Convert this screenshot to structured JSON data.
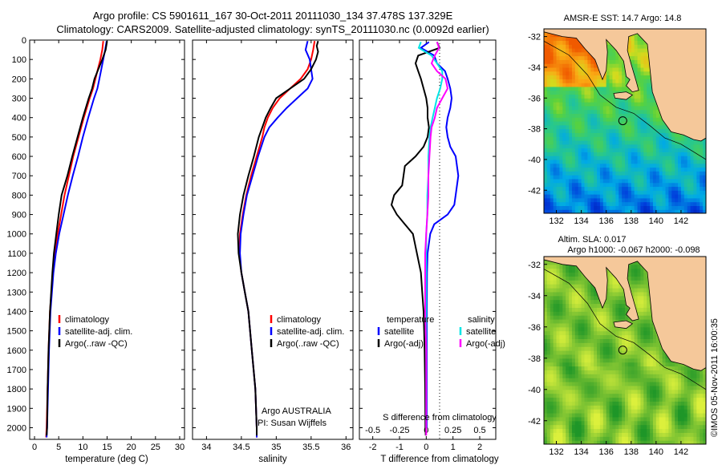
{
  "header": {
    "line1": "Argo profile: CS 5901611_167 30-Oct-2011 20111030_134 37.478S 137.329E",
    "line2": "Climatology: CARS2009. Satellite-adjusted climatology: synTS_20111030.nc (0.0092d earlier)"
  },
  "colors": {
    "climatology": "#ff0000",
    "satellite": "#0000ff",
    "argo": "#000000",
    "sal_satellite": "#00e5e5",
    "sal_argo": "#ff00ff",
    "land": "#f5c89a"
  },
  "chart_data": [
    {
      "id": "temperature",
      "type": "line",
      "xlabel": "temperature (deg C)",
      "ylabel": "",
      "xlim": [
        -1,
        31
      ],
      "ylim": [
        2060,
        0
      ],
      "xticks": [
        0,
        5,
        10,
        15,
        20,
        25,
        30
      ],
      "yticks": [
        0,
        100,
        200,
        300,
        400,
        500,
        600,
        700,
        800,
        900,
        1000,
        1100,
        1200,
        1300,
        1400,
        1500,
        1600,
        1700,
        1800,
        1900,
        2000
      ],
      "legend": {
        "placement": "lower-center",
        "items": [
          "climatology",
          "satellite-adj. clim.",
          "Argo(..raw -QC)"
        ]
      },
      "series": [
        {
          "name": "climatology",
          "color": "#ff0000",
          "y": [
            5,
            50,
            100,
            150,
            200,
            250,
            300,
            400,
            500,
            600,
            700,
            800,
            900,
            1000,
            1100,
            1200,
            1400,
            1600,
            1800,
            2000,
            2050
          ],
          "values": [
            14.2,
            14.0,
            13.6,
            13.1,
            12.6,
            12.1,
            11.4,
            10.2,
            9.1,
            8.0,
            7.1,
            6.2,
            5.5,
            4.8,
            4.2,
            3.8,
            3.2,
            2.9,
            2.7,
            2.5,
            2.4
          ]
        },
        {
          "name": "satellite-adj. clim.",
          "color": "#0000ff",
          "y": [
            5,
            50,
            100,
            150,
            200,
            250,
            300,
            400,
            500,
            600,
            700,
            800,
            900,
            1000,
            1100,
            1200,
            1400,
            1600,
            1800,
            2000,
            2050
          ],
          "values": [
            14.9,
            14.6,
            14.2,
            13.8,
            13.4,
            13.0,
            12.3,
            11.1,
            10.0,
            9.0,
            7.9,
            6.9,
            6.0,
            5.1,
            4.4,
            3.9,
            3.3,
            3.0,
            2.8,
            2.6,
            2.5
          ]
        },
        {
          "name": "Argo(..raw -QC)",
          "color": "#000000",
          "y": [
            5,
            50,
            100,
            150,
            200,
            250,
            300,
            400,
            500,
            600,
            700,
            800,
            900,
            1000,
            1100,
            1200,
            1400,
            1600,
            1800,
            2000,
            2040
          ],
          "values": [
            15.0,
            14.7,
            14.0,
            13.2,
            12.4,
            11.9,
            11.2,
            10.0,
            8.9,
            7.8,
            6.8,
            5.6,
            5.0,
            4.5,
            4.0,
            3.7,
            3.2,
            2.9,
            2.7,
            2.6,
            2.5
          ]
        }
      ]
    },
    {
      "id": "salinity",
      "type": "line",
      "xlabel": "salinity",
      "ylabel": "",
      "xlim": [
        33.8,
        36.1
      ],
      "ylim": [
        2060,
        0
      ],
      "xticks": [
        34,
        34.5,
        35,
        35.5,
        36
      ],
      "legend": {
        "placement": "lower-center",
        "items": [
          "climatology",
          "satellite-adj. clim.",
          "Argo(..raw -QC)"
        ]
      },
      "annotations": [
        "Argo AUSTRALIA",
        "PI: Susan Wijffels"
      ],
      "series": [
        {
          "name": "climatology",
          "color": "#ff0000",
          "y": [
            5,
            50,
            100,
            150,
            200,
            250,
            300,
            350,
            400,
            450,
            500,
            600,
            700,
            800,
            900,
            1000,
            1100,
            1200,
            1300,
            1400,
            1600,
            1800,
            2000,
            2050
          ],
          "values": [
            35.55,
            35.53,
            35.5,
            35.45,
            35.35,
            35.2,
            35.05,
            34.95,
            34.88,
            34.83,
            34.8,
            34.72,
            34.64,
            34.57,
            34.52,
            34.48,
            34.47,
            34.5,
            34.55,
            34.6,
            34.65,
            34.7,
            34.72,
            34.72
          ]
        },
        {
          "name": "satellite-adj. clim.",
          "color": "#0000ff",
          "y": [
            5,
            50,
            100,
            150,
            200,
            250,
            300,
            350,
            400,
            450,
            500,
            600,
            700,
            800,
            900,
            1000,
            1100,
            1200,
            1300,
            1400,
            1600,
            1800,
            2000,
            2050
          ],
          "values": [
            35.45,
            35.42,
            35.48,
            35.5,
            35.52,
            35.45,
            35.3,
            35.15,
            35.02,
            34.9,
            34.83,
            34.74,
            34.66,
            34.58,
            34.53,
            34.49,
            34.48,
            34.5,
            34.55,
            34.6,
            34.65,
            34.7,
            34.72,
            34.72
          ]
        },
        {
          "name": "Argo(..raw -QC)",
          "color": "#000000",
          "y": [
            5,
            30,
            60,
            100,
            150,
            200,
            250,
            300,
            350,
            400,
            450,
            500,
            600,
            700,
            800,
            900,
            1000,
            1100,
            1200,
            1300,
            1400,
            1600,
            1800,
            2000,
            2040
          ],
          "values": [
            35.6,
            35.58,
            35.6,
            35.57,
            35.5,
            35.4,
            35.2,
            35.0,
            34.92,
            34.85,
            34.8,
            34.75,
            34.68,
            34.6,
            34.53,
            34.48,
            34.45,
            34.46,
            34.5,
            34.55,
            34.6,
            34.65,
            34.7,
            34.72,
            34.72
          ]
        }
      ]
    },
    {
      "id": "differences",
      "type": "line",
      "xlabel": "T difference from climatology",
      "x2label": "S difference from climatology",
      "ylabel": "",
      "xlim": [
        -2.5,
        2.6
      ],
      "ylim": [
        2060,
        0
      ],
      "xticks": [
        -2,
        -1,
        0,
        1,
        2
      ],
      "x2ticks": [
        "-0.5",
        "-0.25",
        "0",
        "0.25",
        "0.5"
      ],
      "legend": {
        "placement": "center",
        "groups": [
          {
            "title": "temperature",
            "items": [
              "satellite",
              "Argo(-adj)"
            ]
          },
          {
            "title": "salinity",
            "items": [
              "satellite",
              "Argo(-adj)"
            ]
          }
        ]
      },
      "series": [
        {
          "name": "satellite",
          "group": "temperature",
          "color": "#0000ff",
          "y": [
            10,
            40,
            80,
            120,
            160,
            200,
            250,
            300,
            350,
            400,
            450,
            500,
            550,
            600,
            700,
            800,
            850,
            900,
            950,
            1000,
            1100,
            1200,
            1400,
            1600,
            1800,
            2000
          ],
          "values": [
            0.1,
            -0.2,
            0.3,
            0.4,
            0.7,
            0.8,
            0.9,
            0.95,
            0.9,
            0.8,
            0.75,
            0.8,
            0.9,
            1.1,
            1.2,
            1.1,
            1.05,
            0.8,
            0.3,
            0.15,
            0.05,
            0.03,
            0.02,
            0.02,
            0.02,
            0.02
          ]
        },
        {
          "name": "Argo(-adj)",
          "group": "temperature",
          "color": "#000000",
          "y": [
            10,
            40,
            80,
            120,
            160,
            200,
            250,
            300,
            350,
            400,
            450,
            500,
            550,
            600,
            650,
            700,
            750,
            800,
            850,
            900,
            950,
            1000,
            1100,
            1200,
            1300,
            1400,
            1500,
            1600,
            1800,
            2000,
            2040
          ],
          "values": [
            0.4,
            0.5,
            -0.3,
            -0.4,
            -0.3,
            -0.2,
            -0.1,
            0.0,
            0.05,
            0.05,
            0.1,
            0.05,
            -0.1,
            -0.4,
            -0.8,
            -0.85,
            -0.9,
            -1.2,
            -1.3,
            -1.1,
            -0.8,
            -0.5,
            -0.35,
            -0.2,
            -0.15,
            -0.1,
            -0.08,
            -0.06,
            -0.04,
            -0.03,
            -0.02
          ]
        },
        {
          "name": "satellite",
          "group": "salinity",
          "color": "#00e5e5",
          "y": [
            10,
            40,
            80,
            120,
            160,
            200,
            250,
            300,
            350,
            400,
            450,
            500,
            600,
            700,
            800,
            900,
            1000,
            1200,
            1400,
            1600,
            1800,
            2000
          ],
          "values": [
            -0.05,
            -0.07,
            0.05,
            0.1,
            0.15,
            0.15,
            0.13,
            0.1,
            0.08,
            0.06,
            0.04,
            0.03,
            0.02,
            0.02,
            0.01,
            0.01,
            0.0,
            0.0,
            0.0,
            0.0,
            0.0,
            0.0
          ]
        },
        {
          "name": "Argo(-adj)",
          "group": "salinity",
          "color": "#ff00ff",
          "y": [
            10,
            40,
            80,
            120,
            160,
            200,
            250,
            300,
            350,
            400,
            450,
            500,
            600,
            700,
            800,
            900,
            1000,
            1100,
            1200,
            1400,
            1600,
            1800,
            2000,
            2040
          ],
          "values": [
            0.1,
            0.12,
            0.08,
            0.05,
            0.1,
            0.18,
            0.2,
            0.15,
            0.1,
            0.08,
            0.05,
            0.04,
            0.03,
            0.02,
            0.02,
            0.01,
            0.0,
            -0.01,
            -0.01,
            -0.01,
            0.0,
            0.0,
            0.0,
            0.0
          ]
        }
      ]
    },
    {
      "id": "sst-map",
      "type": "heatmap",
      "title": "AMSR-E SST: 14.7 Argo: 14.8",
      "xlim": [
        131,
        144
      ],
      "ylim": [
        -43.5,
        -31.5
      ],
      "xticks": [
        132,
        134,
        136,
        138,
        140,
        142
      ],
      "yticks": [
        -32,
        -34,
        -36,
        -38,
        -40,
        -42
      ],
      "marker": {
        "lon": 137.329,
        "lat": -37.478
      }
    },
    {
      "id": "sla-map",
      "type": "heatmap",
      "title": "Altim. SLA: 0.017",
      "subtitle": "Argo h1000: -0.067 h2000: -0.098",
      "xlim": [
        131,
        144
      ],
      "ylim": [
        -43.5,
        -31.5
      ],
      "xticks": [
        132,
        134,
        136,
        138,
        140,
        142
      ],
      "yticks": [
        -32,
        -34,
        -36,
        -38,
        -40,
        -42
      ],
      "marker": {
        "lon": 137.329,
        "lat": -37.478
      }
    }
  ],
  "credit": "©IMOS 05-Nov-2011 16:00:35"
}
